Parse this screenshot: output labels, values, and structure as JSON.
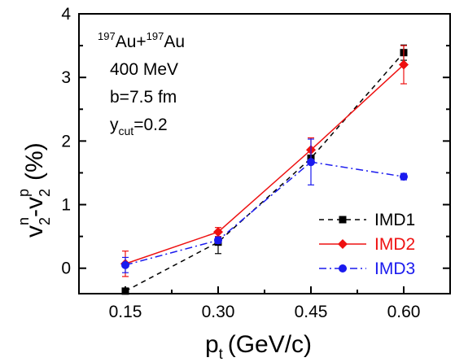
{
  "chart_data": {
    "type": "line",
    "xlabel": {
      "main": "p",
      "sub": "t",
      "unit": "(GeV/c)"
    },
    "ylabel": {
      "v": "v",
      "sub2": "2",
      "supn": "n",
      "dash": "-",
      "supp": "p",
      "unit": "(%)"
    },
    "x_ticks": [
      "0.15",
      "0.30",
      "0.45",
      "0.60"
    ],
    "x_values": [
      0.15,
      0.3,
      0.45,
      0.6
    ],
    "xlim": [
      0.075,
      0.675
    ],
    "y_ticks": [
      "0",
      "1",
      "2",
      "3",
      "4"
    ],
    "ylim": [
      -0.4,
      4.0
    ],
    "grid": false,
    "legend_position": "bottom-right",
    "annotations": {
      "system": {
        "mass1": "197",
        "el1": "Au+",
        "mass2": "197",
        "el2": "Au"
      },
      "energy": "400 MeV",
      "impact": "b=7.5 fm",
      "ycut": {
        "y": "y",
        "sub": "cut",
        "val": "=0.2"
      }
    },
    "series": [
      {
        "name": "IMD1",
        "color": "#000000",
        "marker": "square",
        "dash": "6,5",
        "values": [
          -0.36,
          0.41,
          1.73,
          3.39
        ],
        "errors": [
          0.0,
          0.18,
          0.0,
          0.12
        ]
      },
      {
        "name": "IMD2",
        "color": "#ee1111",
        "marker": "diamond",
        "dash": "",
        "values": [
          0.07,
          0.57,
          1.86,
          3.2
        ],
        "errors": [
          0.2,
          0.07,
          0.19,
          0.3
        ]
      },
      {
        "name": "IMD3",
        "color": "#1a1aee",
        "marker": "circle",
        "dash": "9,4,2,4",
        "values": [
          0.05,
          0.44,
          1.67,
          1.44
        ],
        "errors": [
          0.12,
          0.05,
          0.36,
          0.05
        ]
      }
    ]
  }
}
